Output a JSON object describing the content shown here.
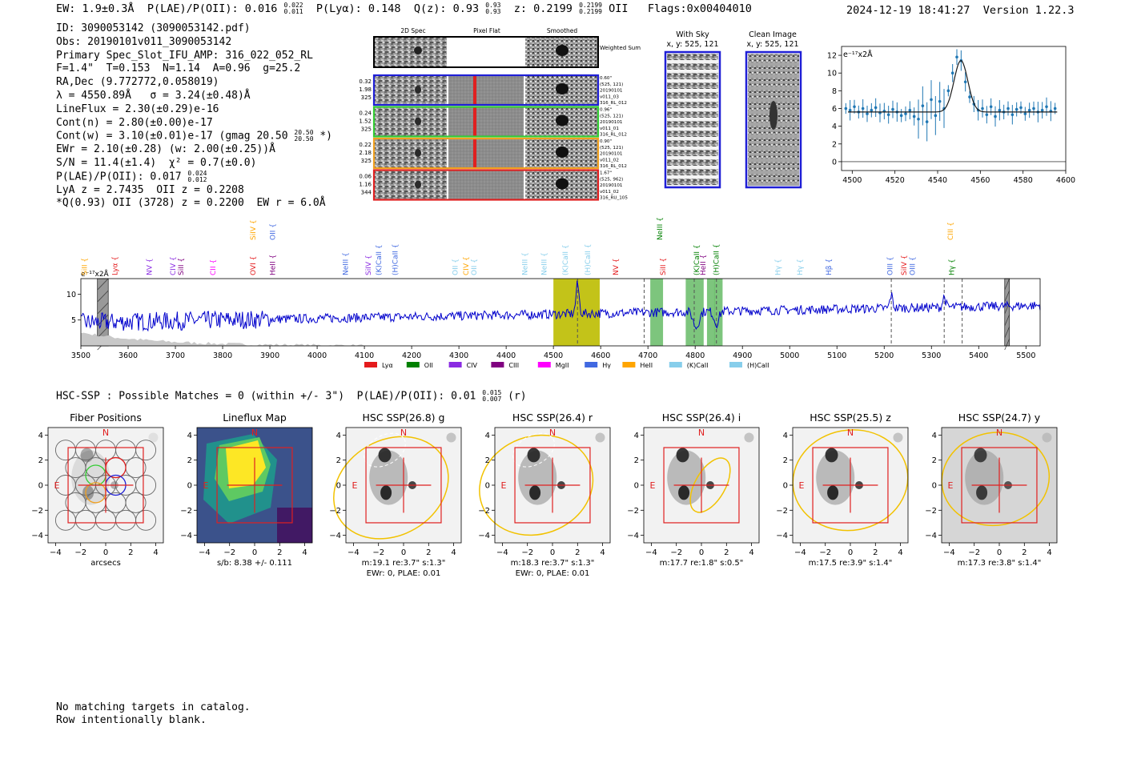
{
  "header": {
    "ew": "EW: 1.9±0.3Å",
    "plae": "P(LAE)/P(OII): 0.016",
    "plae_hi": "0.022",
    "plae_lo": "0.011",
    "plya": "P(Lyα): 0.148",
    "q": "Q(z): 0.93",
    "q_hi": "0.93",
    "q_lo": "0.93",
    "z": "z: 0.2199",
    "z_hi": "0.2199",
    "z_lo": "0.2199",
    "z_line": "OII",
    "flags": "Flags:0x00404010",
    "timestamp": "2024-12-19 18:41:27",
    "version": "Version 1.22.3"
  },
  "info": {
    "id": "ID: 3090053142 (3090053142.pdf)",
    "obs": "Obs: 20190101v011_3090053142",
    "primary": "Primary Spec_Slot_IFU_AMP: 316_022_052_RL",
    "params": "F=1.4\"  T=0.153  N=1.14  A=0.96  g=25.2",
    "radec": "RA,Dec (9.772772,0.058019)",
    "lambda": "λ = 4550.89Å   σ = 3.24(±0.48)Å",
    "lineflux": "LineFlux = 2.30(±0.29)e-16",
    "contn": "Cont(n) = 2.80(±0.00)e-17",
    "contw": "Cont(w) = 3.10(±0.01)e-17 (gmag 20.50",
    "gmag_hi": "20.50",
    "gmag_lo": "20.50",
    "contw_end": " *)",
    "ewr": "EWr = 2.10(±0.28) (w: 2.00(±0.25))Å",
    "sn": "S/N = 11.4(±1.4)  χ² = 0.7(±0.0)",
    "plae2": "P(LAE)/P(OII): 0.017",
    "plae2_hi": "0.024",
    "plae2_lo": "0.012",
    "lya": "LyA z = 2.7435  OII z = 0.2208",
    "q_oii": "*Q(0.93) OII (3728) z = 0.2200  EW r = 6.0Å"
  },
  "cutouts": {
    "col_titles": [
      "2D Spec",
      "Pixel Flat",
      "Smoothed"
    ],
    "weighted_sum": "Weighted Sum",
    "rows": [
      {
        "vals": [
          "0.32",
          "1.98",
          "325"
        ],
        "color": "#1f1fd6",
        "meta": [
          "0.60\"",
          "(525, 121)",
          "20190101",
          "v011_03",
          "316_RL_012"
        ]
      },
      {
        "vals": [
          "0.24",
          "1.52",
          "325"
        ],
        "color": "#33cc33",
        "meta": [
          "0.96\"",
          "(525, 121)",
          "20190101",
          "v011_01",
          "316_RL_012"
        ]
      },
      {
        "vals": [
          "0.22",
          "2.18",
          "325"
        ],
        "color": "#f0a020",
        "meta": [
          "0.90\"",
          "(525, 121)",
          "20190101",
          "v011_02",
          "316_RL_012"
        ]
      },
      {
        "vals": [
          "0.06",
          "1.16",
          "344"
        ],
        "color": "#e02020",
        "meta": [
          "1.67\"",
          "(525, 962)",
          "20190101",
          "v011_02",
          "316_RU_105"
        ]
      }
    ],
    "with_sky_title": "With Sky",
    "with_sky_xy": "x, y: 525, 121",
    "clean_title": "Clean Image",
    "clean_xy": "x, y: 525, 121"
  },
  "colors": {
    "lya": "#e41a1c",
    "oii": "#008000",
    "civ": "#8a2be2",
    "ciii": "#800080",
    "mgii": "#ff00ff",
    "hg": "#4169e1",
    "heii": "#ffa500",
    "kcaii": "#87ceeb",
    "hcaii": "#87ceeb",
    "spectrum": "#0000cc",
    "fit": "#1f77b4",
    "olive": "#bdbd00"
  },
  "chart_data": [
    {
      "type": "line",
      "name": "line-fit",
      "ylabel_unit": "e⁻¹⁷x2Å",
      "xlim": [
        4495,
        4600
      ],
      "ylim": [
        -1,
        13
      ],
      "xticks": [
        4500,
        4520,
        4540,
        4560,
        4580,
        4600
      ],
      "yticks": [
        0,
        2,
        4,
        6,
        8,
        10,
        12
      ],
      "fit": {
        "continuum": 5.6,
        "amplitude": 5.8,
        "center": 4550.9,
        "sigma": 3.24
      },
      "points_x": [
        4497,
        4499,
        4501,
        4503,
        4505,
        4507,
        4509,
        4511,
        4513,
        4515,
        4517,
        4519,
        4521,
        4523,
        4525,
        4527,
        4529,
        4531,
        4533,
        4535,
        4537,
        4539,
        4541,
        4543,
        4545,
        4547,
        4549,
        4551,
        4553,
        4555,
        4557,
        4559,
        4561,
        4563,
        4565,
        4567,
        4569,
        4571,
        4573,
        4575,
        4577,
        4579,
        4581,
        4583,
        4585,
        4587,
        4589,
        4591,
        4593,
        4595
      ],
      "points_y": [
        6.0,
        5.8,
        6.2,
        5.6,
        6.0,
        5.4,
        5.8,
        6.1,
        5.5,
        5.7,
        5.3,
        5.9,
        5.6,
        5.2,
        5.4,
        5.8,
        5.1,
        4.8,
        6.3,
        4.5,
        7.0,
        5.2,
        6.8,
        6.0,
        8.0,
        10.0,
        11.8,
        11.4,
        9.0,
        7.3,
        6.5,
        5.8,
        6.0,
        5.3,
        6.2,
        5.1,
        5.8,
        5.6,
        6.0,
        5.3,
        5.9,
        6.1,
        5.4,
        5.8,
        6.0,
        5.6,
        5.8,
        6.2,
        5.7,
        6.0
      ]
    },
    {
      "type": "line",
      "name": "full-spectrum",
      "unit_label": "e⁻¹⁷x2Å",
      "xlim": [
        3500,
        5530
      ],
      "ylim": [
        0,
        13
      ],
      "xticks": [
        3500,
        3600,
        3700,
        3800,
        3900,
        4000,
        4100,
        4200,
        4300,
        4400,
        4500,
        4600,
        4700,
        4800,
        4900,
        5000,
        5100,
        5200,
        5300,
        5400,
        5500
      ],
      "yticks": [
        5,
        10
      ],
      "emission_lines": [
        {
          "label": "SiII",
          "x": 3508,
          "color": "#ffa500",
          "tier": 1
        },
        {
          "label": "Lyα",
          "x": 3572,
          "color": "#e41a1c",
          "tier": 1
        },
        {
          "label": "NV",
          "x": 3645,
          "color": "#8a2be2",
          "tier": 1
        },
        {
          "label": "CIV",
          "x": 3695,
          "color": "#8a2be2",
          "tier": 1
        },
        {
          "label": "SiII",
          "x": 3712,
          "color": "#800080",
          "tier": 1
        },
        {
          "label": "CII",
          "x": 3780,
          "color": "#ff00ff",
          "tier": 1
        },
        {
          "label": "SiIV",
          "x": 3864,
          "color": "#ffa500",
          "tier": 2
        },
        {
          "label": "OVI",
          "x": 3864,
          "color": "#e41a1c",
          "tier": 1
        },
        {
          "label": "OII",
          "x": 3906,
          "color": "#4169e1",
          "tier": 2
        },
        {
          "label": "HeII",
          "x": 3906,
          "color": "#800080",
          "tier": 1
        },
        {
          "label": "NeIII",
          "x": 4060,
          "color": "#4169e1",
          "tier": 1
        },
        {
          "label": "SiIV",
          "x": 4108,
          "color": "#8a2be2",
          "tier": 1
        },
        {
          "label": "(K)CaII",
          "x": 4130,
          "color": "#4169e1",
          "tier": 1
        },
        {
          "label": "(H)CaII",
          "x": 4165,
          "color": "#4169e1",
          "tier": 1
        },
        {
          "label": "OII",
          "x": 4292,
          "color": "#87ceeb",
          "tier": 1
        },
        {
          "label": "CIV",
          "x": 4315,
          "color": "#ffa500",
          "tier": 1
        },
        {
          "label": "OII",
          "x": 4332,
          "color": "#87ceeb",
          "tier": 1
        },
        {
          "label": "NeIII",
          "x": 4440,
          "color": "#87ceeb",
          "tier": 1
        },
        {
          "label": "NeIII",
          "x": 4480,
          "color": "#87ceeb",
          "tier": 1
        },
        {
          "label": "(K)CaII",
          "x": 4525,
          "color": "#87ceeb",
          "tier": 1
        },
        {
          "label": "(H)CaII",
          "x": 4573,
          "color": "#87ceeb",
          "tier": 1
        },
        {
          "label": "NV",
          "x": 4632,
          "color": "#e41a1c",
          "tier": 1
        },
        {
          "label": "NeIII",
          "x": 4725,
          "color": "#008000",
          "tier": 2
        },
        {
          "label": "SiII",
          "x": 4732,
          "color": "#e41a1c",
          "tier": 1
        },
        {
          "label": "(K)CaII",
          "x": 4803,
          "color": "#008000",
          "tier": 1
        },
        {
          "label": "HeII",
          "x": 4817,
          "color": "#800080",
          "tier": 1
        },
        {
          "label": "(H)CaII",
          "x": 4845,
          "color": "#008000",
          "tier": 1
        },
        {
          "label": "Hγ",
          "x": 4975,
          "color": "#87ceeb",
          "tier": 1
        },
        {
          "label": "Hγ",
          "x": 5022,
          "color": "#87ceeb",
          "tier": 1
        },
        {
          "label": "Hβ",
          "x": 5083,
          "color": "#4169e1",
          "tier": 1
        },
        {
          "label": "OIII",
          "x": 5212,
          "color": "#4169e1",
          "tier": 1
        },
        {
          "label": "SiIV",
          "x": 5242,
          "color": "#e41a1c",
          "tier": 1
        },
        {
          "label": "OIII",
          "x": 5260,
          "color": "#4169e1",
          "tier": 1
        },
        {
          "label": "CIII",
          "x": 5340,
          "color": "#ffa500",
          "tier": 2
        },
        {
          "label": "Hγ",
          "x": 5343,
          "color": "#008000",
          "tier": 1
        }
      ],
      "highlight_bands": [
        {
          "x0": 4500,
          "x1": 4598,
          "color": "#bdbd00"
        },
        {
          "x0": 4705,
          "x1": 4732,
          "color": "#6fbf6f"
        },
        {
          "x0": 4780,
          "x1": 4818,
          "color": "#6fbf6f"
        },
        {
          "x0": 4825,
          "x1": 4842,
          "color": "#6fbf6f"
        },
        {
          "x0": 4840,
          "x1": 4858,
          "color": "#6fbf6f"
        }
      ],
      "hatched_bands": [
        {
          "x0": 3535,
          "x1": 3558
        },
        {
          "x0": 5455,
          "x1": 5465
        }
      ],
      "dashed_lines": [
        4551,
        4692,
        4798,
        4845,
        5215,
        5327,
        5365
      ],
      "legend": [
        {
          "label": "Lyα",
          "color": "#e41a1c"
        },
        {
          "label": "OII",
          "color": "#008000"
        },
        {
          "label": "CIV",
          "color": "#8a2be2"
        },
        {
          "label": "CIII",
          "color": "#800080"
        },
        {
          "label": "MgII",
          "color": "#ff00ff"
        },
        {
          "label": "Hγ",
          "color": "#4169e1"
        },
        {
          "label": "HeII",
          "color": "#ffa500"
        },
        {
          "label": "(K)CaII",
          "color": "#87ceeb"
        },
        {
          "label": "(H)CaII",
          "color": "#87ceeb"
        }
      ]
    },
    {
      "type": "heatmap",
      "name": "imaging-panels",
      "xticks": [
        -4,
        -2,
        0,
        2,
        4
      ],
      "yticks": [
        -4,
        -2,
        0,
        2,
        4
      ],
      "north_label": "N",
      "east_label": "E",
      "panels": [
        {
          "title": "Fiber Positions",
          "caption": [
            "arcsecs"
          ]
        },
        {
          "title": "Lineflux Map",
          "caption": [
            "s/b: 8.38 +/- 0.111"
          ]
        },
        {
          "title": "HSC SSP(26.8) g",
          "caption": [
            "m:19.1  re:3.7\"  s:1.3\"",
            "EWr: 0, PLAE: 0.01"
          ]
        },
        {
          "title": "HSC SSP(26.4) r",
          "caption": [
            "m:18.3  re:3.7\"  s:1.3\"",
            "EWr: 0, PLAE: 0.01"
          ]
        },
        {
          "title": "HSC SSP(26.4) i",
          "caption": [
            "m:17.7  re:1.8\"  s:0.5\""
          ]
        },
        {
          "title": "HSC SSP(25.5) z",
          "caption": [
            "m:17.5  re:3.9\"  s:1.4\""
          ]
        },
        {
          "title": "HSC SSP(24.7) y",
          "caption": [
            "m:17.3  re:3.8\"  s:1.4\""
          ]
        }
      ]
    }
  ],
  "hsc": {
    "line": "HSC-SSP : Possible Matches = 0 (within +/- 3\")  P(LAE)/P(OII): 0.01",
    "hi": "0.015",
    "lo": "0.007",
    "end": " (r)"
  },
  "footer": {
    "line1": "No matching targets in catalog.",
    "line2": "Row intentionally blank."
  }
}
